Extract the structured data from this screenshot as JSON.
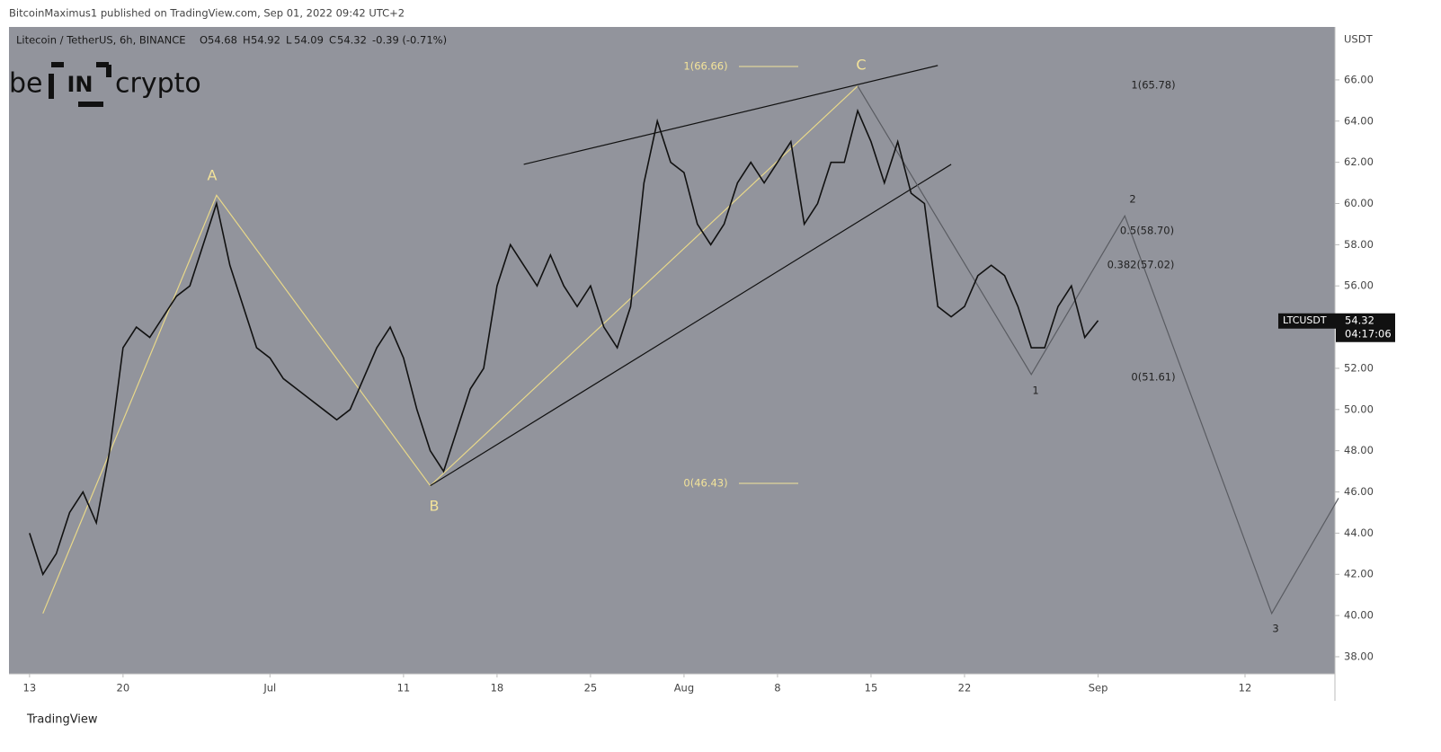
{
  "header": {
    "publisher": "BitcoinMaximus1 published on TradingView.com, Sep 01, 2022 09:42 UTC+2",
    "footer": "TradingView",
    "logo": [
      "be",
      "IN",
      "crypto"
    ]
  },
  "chart_data": {
    "type": "line",
    "title": "Litecoin / TetherUS, 6h, BINANCE",
    "ohlc": [
      {
        "key": "O",
        "label": "54.68"
      },
      {
        "key": "H",
        "label": "54.92"
      },
      {
        "key": "L",
        "label": "54.09"
      },
      {
        "key": "C",
        "label": "54.32"
      }
    ],
    "change": "-0.39 (-0.71%)",
    "symbol": "LTCUSDT",
    "countdown": "04:17:06",
    "y_unit": "USDT",
    "color": "#111111",
    "x": [
      "Jun 13",
      "Jun 14",
      "Jun 15",
      "Jun 16",
      "Jun 17",
      "Jun 18",
      "Jun 19",
      "Jun 20",
      "Jun 21",
      "Jun 22",
      "Jun 23",
      "Jun 24",
      "Jun 25",
      "Jun 26",
      "Jun 27",
      "Jun 28",
      "Jun 29",
      "Jun 30",
      "Jul 1",
      "Jul 2",
      "Jul 3",
      "Jul 4",
      "Jul 5",
      "Jul 6",
      "Jul 7",
      "Jul 8",
      "Jul 9",
      "Jul 10",
      "Jul 11",
      "Jul 12",
      "Jul 13",
      "Jul 14",
      "Jul 15",
      "Jul 16",
      "Jul 17",
      "Jul 18",
      "Jul 19",
      "Jul 20",
      "Jul 21",
      "Jul 22",
      "Jul 23",
      "Jul 24",
      "Jul 25",
      "Jul 26",
      "Jul 27",
      "Jul 28",
      "Jul 29",
      "Jul 30",
      "Jul 31",
      "Aug 1",
      "Aug 2",
      "Aug 3",
      "Aug 4",
      "Aug 5",
      "Aug 6",
      "Aug 7",
      "Aug 8",
      "Aug 9",
      "Aug 10",
      "Aug 11",
      "Aug 12",
      "Aug 13",
      "Aug 14",
      "Aug 15",
      "Aug 16",
      "Aug 17",
      "Aug 18",
      "Aug 19",
      "Aug 20",
      "Aug 21",
      "Aug 22",
      "Aug 23",
      "Aug 24",
      "Aug 25",
      "Aug 26",
      "Aug 27",
      "Aug 28",
      "Aug 29",
      "Aug 30",
      "Aug 31",
      "Sep 1"
    ],
    "values": [
      44,
      42,
      43,
      45,
      46,
      44.5,
      48,
      53,
      54,
      53.5,
      54.5,
      55.5,
      56,
      58,
      60,
      57,
      55,
      53,
      52.5,
      51.5,
      51,
      50.5,
      50,
      49.5,
      50,
      51.5,
      53,
      54,
      52.5,
      50,
      48,
      47,
      49,
      51,
      52,
      56,
      58,
      57,
      56,
      57.5,
      56,
      55,
      56,
      54,
      53,
      55,
      61,
      64,
      62,
      61.5,
      59,
      58,
      59,
      61,
      62,
      61,
      62,
      63,
      59,
      60,
      62,
      62,
      64.5,
      63,
      61,
      63,
      60.5,
      60,
      55,
      54.5,
      55,
      56.5,
      57,
      56.5,
      55,
      53,
      53,
      55,
      56,
      53.5,
      54.32
    ],
    "xlim": [
      "Jun 12",
      "Sep 19"
    ],
    "xticks": [
      {
        "value": "Jun 13",
        "label": "13"
      },
      {
        "value": "Jun 20",
        "label": "20"
      },
      {
        "value": "Jul 1",
        "label": "Jul"
      },
      {
        "value": "Jul 11",
        "label": "11"
      },
      {
        "value": "Jul 18",
        "label": "18"
      },
      {
        "value": "Jul 25",
        "label": "25"
      },
      {
        "value": "Aug 1",
        "label": "Aug"
      },
      {
        "value": "Aug 8",
        "label": "8"
      },
      {
        "value": "Aug 15",
        "label": "15"
      },
      {
        "value": "Aug 22",
        "label": "22"
      },
      {
        "value": "Sep 1",
        "label": "Sep"
      },
      {
        "value": "Sep 12",
        "label": "12"
      }
    ],
    "ylim": [
      37.17,
      68.57
    ],
    "yticks": [
      {
        "value": 38,
        "label": "38.00"
      },
      {
        "value": 40,
        "label": "40.00"
      },
      {
        "value": 42,
        "label": "42.00"
      },
      {
        "value": 44,
        "label": "44.00"
      },
      {
        "value": 46,
        "label": "46.00"
      },
      {
        "value": 48,
        "label": "48.00"
      },
      {
        "value": 50,
        "label": "50.00"
      },
      {
        "value": 52,
        "label": "52.00"
      },
      {
        "value": 54,
        "label": "54.00"
      },
      {
        "value": 56,
        "label": "56.00"
      },
      {
        "value": 58,
        "label": "58.00"
      },
      {
        "value": 60,
        "label": "60.00"
      },
      {
        "value": 62,
        "label": "62.00"
      },
      {
        "value": 64,
        "label": "64.00"
      },
      {
        "value": 66,
        "label": "66.00"
      }
    ],
    "overlays": [
      {
        "color": "#e8d88a",
        "x": [
          "Jun 14",
          "Jun 27",
          "Jul 13",
          "Aug 14"
        ],
        "values": [
          40.1,
          60.4,
          46.3,
          65.7
        ]
      },
      {
        "color": "#111111",
        "x": [
          "Jul 20",
          "Aug 20"
        ],
        "values": [
          61.9,
          66.7
        ]
      },
      {
        "color": "#111111",
        "x": [
          "Jul 13",
          "Aug 21"
        ],
        "values": [
          46.3,
          61.9
        ]
      },
      {
        "color": "#5a5c62",
        "x": [
          "Aug 14",
          "Aug 27",
          "Sep 3",
          "Sep 14",
          "Sep 19"
        ],
        "values": [
          65.7,
          51.7,
          59.4,
          40.1,
          45.7
        ]
      }
    ],
    "annotations": [
      {
        "text": "A",
        "color": "#f3e39a"
      },
      {
        "text": "B",
        "color": "#f3e39a"
      },
      {
        "text": "C",
        "color": "#f3e39a"
      },
      {
        "text": "1(66.66)",
        "color": "#f3e39a"
      },
      {
        "text": "0(46.43)",
        "color": "#f3e39a"
      },
      {
        "text": "1(65.78)",
        "color": "#222"
      },
      {
        "text": "0.5(58.70)",
        "color": "#222"
      },
      {
        "text": "0.382(57.02)",
        "color": "#222"
      },
      {
        "text": "0(51.61)",
        "color": "#222"
      },
      {
        "text": "1",
        "color": "#222"
      },
      {
        "text": "2",
        "color": "#222"
      },
      {
        "text": "3",
        "color": "#222"
      }
    ]
  }
}
